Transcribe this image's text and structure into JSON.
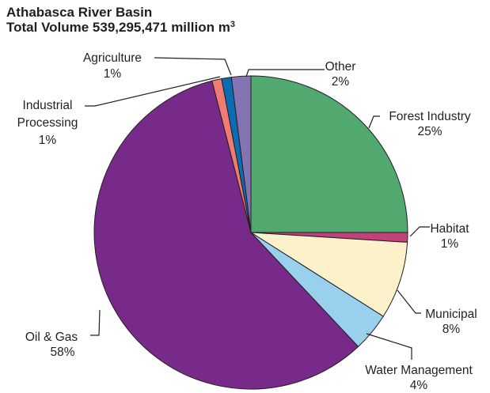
{
  "chart_data": {
    "type": "pie",
    "title": "Athabasca River Basin",
    "subtitle_prefix": "Total Volume 539,295,471 million m",
    "subtitle_superscript": "3",
    "slices": [
      {
        "name": "Other",
        "value": 2,
        "label": "2%",
        "color": "#8474b4"
      },
      {
        "name": "Forest Industry",
        "value": 25,
        "label": "25%",
        "color": "#52a96f"
      },
      {
        "name": "Habitat",
        "value": 1,
        "label": "1%",
        "color": "#c2417b"
      },
      {
        "name": "Municipal",
        "value": 8,
        "label": "8%",
        "color": "#fbf2cc"
      },
      {
        "name": "Water Management",
        "value": 4,
        "label": "4%",
        "color": "#98d0ed"
      },
      {
        "name": "Oil & Gas",
        "value": 58,
        "label": "58%",
        "color": "#782a8a"
      },
      {
        "name": "Industrial Processing",
        "value": 1,
        "label": "1%",
        "color": "#ef7b73"
      },
      {
        "name": "Agriculture",
        "value": 1,
        "label": "1%",
        "color": "#0b6bb3"
      }
    ]
  }
}
